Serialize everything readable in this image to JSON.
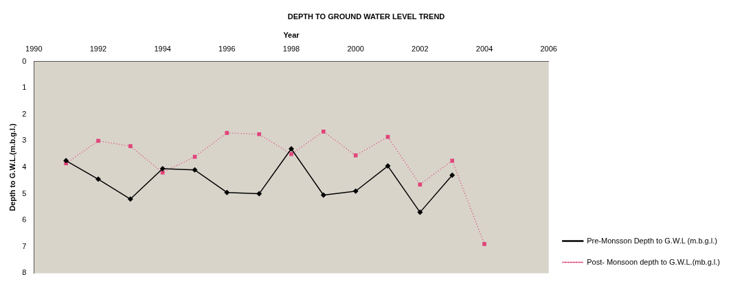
{
  "chart_data": {
    "type": "line",
    "title": "DEPTH TO GROUND WATER LEVEL TREND",
    "xlabel": "Year",
    "ylabel": "Depth to G.W.L.(m.b.g.l.)",
    "x": [
      1991,
      1992,
      1993,
      1994,
      1995,
      1996,
      1997,
      1998,
      1999,
      2000,
      2001,
      2002,
      2003,
      2004
    ],
    "series": [
      {
        "name": "Pre-Monsson Depth to G.W.L (m.b.g.l.)",
        "color": "#000000",
        "marker": "diamond",
        "line_style": "solid",
        "values": [
          3.75,
          4.45,
          5.2,
          4.05,
          4.1,
          4.95,
          5.0,
          3.3,
          5.05,
          4.9,
          3.95,
          5.7,
          4.3,
          null
        ]
      },
      {
        "name": "Post- Monsoon depth to G.W.L.(mb.g.l.)",
        "color": "#e0457b",
        "marker": "square",
        "line_style": "dotted",
        "values": [
          3.85,
          3.0,
          3.2,
          4.2,
          3.6,
          2.7,
          2.75,
          3.5,
          2.65,
          3.55,
          2.85,
          4.65,
          3.75,
          6.9
        ]
      }
    ],
    "xlim": [
      1990,
      2006
    ],
    "xticks": [
      1990,
      1992,
      1994,
      1996,
      1998,
      2000,
      2002,
      2004,
      2006
    ],
    "ylim": [
      8,
      0
    ],
    "yticks": [
      0,
      1,
      2,
      3,
      4,
      5,
      6,
      7,
      8
    ],
    "legend": "right",
    "grid": false
  }
}
